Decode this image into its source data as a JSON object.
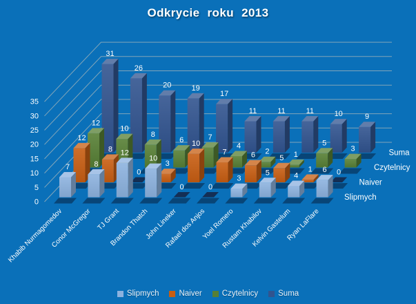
{
  "title": "Odkrycie roku 2013",
  "chart_data": {
    "type": "bar",
    "variant": "3d-clustered-depth-rows",
    "title": "Odkrycie roku 2013",
    "background_color": "#0A70B9",
    "gridline_color": "#CDC6BA",
    "categories": [
      "Khabib Nurmagomedov",
      "Conor McGregor",
      "TJ Grant",
      "Brandon Thatch",
      "John Lineker",
      "Rafael dos Anjos",
      "Yoel Romero",
      "Rustam Khabilov",
      "Kelvin Gastelum",
      "Ryan LaFlare"
    ],
    "series": [
      {
        "name": "Slipmych",
        "color": "#8CB2DF",
        "values": [
          7,
          8,
          12,
          10,
          0,
          0,
          3,
          5,
          4,
          6
        ]
      },
      {
        "name": "Naiver",
        "color": "#C75E12",
        "values": [
          12,
          8,
          0,
          3,
          10,
          7,
          6,
          5,
          1,
          0
        ]
      },
      {
        "name": "Czytelnicy",
        "color": "#577F35",
        "values": [
          12,
          10,
          8,
          6,
          7,
          4,
          2,
          1,
          5,
          3
        ]
      },
      {
        "name": "Suma",
        "color": "#31548F",
        "values": [
          31,
          26,
          20,
          19,
          17,
          11,
          11,
          11,
          10,
          9
        ]
      }
    ],
    "value_axis": {
      "min": 0,
      "max": 35,
      "step": 5,
      "ticks": [
        0,
        5,
        10,
        15,
        20,
        25,
        30,
        35
      ]
    },
    "depth_axis_labels_front_to_back": [
      "Slipmych",
      "Naiver",
      "Czytelnicy",
      "Suma"
    ],
    "legend": {
      "position": "bottom",
      "entries": [
        "Slipmych",
        "Naiver",
        "Czytelnicy",
        "Suma"
      ]
    },
    "data_labels": true,
    "gridlines": true
  }
}
